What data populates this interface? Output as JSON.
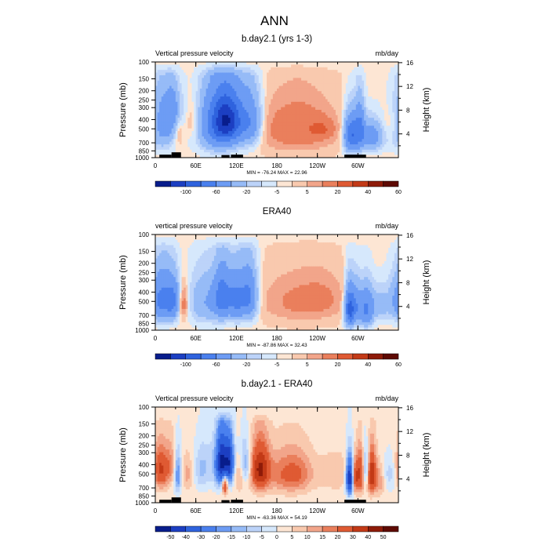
{
  "figure": {
    "title": "ANN"
  },
  "chart_data": [
    {
      "type": "heatmap",
      "title": "b.day2.1 (yrs 1-3)",
      "subtitle_left": "Vertical pressure velocity",
      "subtitle_right": "mb/day",
      "ylabel": "Pressure (mb)",
      "ylabel_right": "Height (km)",
      "xticks": [
        "0",
        "60E",
        "120E",
        "180",
        "120W",
        "60W"
      ],
      "yticks": [
        "100",
        "150",
        "200",
        "250",
        "300",
        "400",
        "500",
        "700",
        "850",
        "1000"
      ],
      "yticks_right": [
        "16",
        "12",
        "8",
        "4"
      ],
      "stats": "MIN = -76.24  MAX = 22.96",
      "colorbar_labels": [
        "-100",
        "-60",
        "-20",
        "-5",
        "5",
        "20",
        "40",
        "60"
      ],
      "xlim_deg_east": [
        0,
        360
      ],
      "ylim_mb": [
        1000,
        100
      ],
      "topography": true,
      "blobs": [
        {
          "lon": 10,
          "p": 450,
          "v": -30,
          "wlon": 14,
          "wp": 420
        },
        {
          "lon": 27,
          "p": 320,
          "v": -25,
          "wlon": 9,
          "wp": 250
        },
        {
          "lon": 34,
          "p": 450,
          "v": 12,
          "wlon": 5,
          "wp": 340
        },
        {
          "lon": 56,
          "p": 420,
          "v": 8,
          "wlon": 9,
          "wp": 280
        },
        {
          "lon": 95,
          "p": 450,
          "v": -55,
          "wlon": 20,
          "wp": 450
        },
        {
          "lon": 108,
          "p": 400,
          "v": -60,
          "wlon": 14,
          "wp": 320
        },
        {
          "lon": 140,
          "p": 420,
          "v": -35,
          "wlon": 12,
          "wp": 380
        },
        {
          "lon": 210,
          "p": 500,
          "v": 18,
          "wlon": 38,
          "wp": 420
        },
        {
          "lon": 247,
          "p": 500,
          "v": 12,
          "wlon": 12,
          "wp": 160
        },
        {
          "lon": 290,
          "p": 580,
          "v": -60,
          "wlon": 7,
          "wp": 350
        },
        {
          "lon": 303,
          "p": 500,
          "v": -40,
          "wlon": 5,
          "wp": 380
        },
        {
          "lon": 320,
          "p": 600,
          "v": -30,
          "wlon": 12,
          "wp": 300
        },
        {
          "lon": 355,
          "p": 450,
          "v": 10,
          "wlon": 12,
          "wp": 250
        }
      ]
    },
    {
      "type": "heatmap",
      "title": "ERA40",
      "subtitle_left": "vertical pressure velocity",
      "subtitle_right": "mb/day",
      "ylabel": "Pressure (mb)",
      "ylabel_right": "Height (km)",
      "xticks": [
        "0",
        "60E",
        "120E",
        "180",
        "120W",
        "60W"
      ],
      "yticks": [
        "100",
        "150",
        "200",
        "250",
        "300",
        "400",
        "500",
        "700",
        "850",
        "1000"
      ],
      "yticks_right": [
        "16",
        "12",
        "8",
        "4"
      ],
      "stats": "MIN = -87.86  MAX = 32.43",
      "colorbar_labels": [
        "-100",
        "-60",
        "-20",
        "-5",
        "5",
        "20",
        "40",
        "60"
      ],
      "xlim_deg_east": [
        0,
        360
      ],
      "ylim_mb": [
        1000,
        100
      ],
      "topography": false,
      "blobs": [
        {
          "lon": 12,
          "p": 480,
          "v": -45,
          "wlon": 12,
          "wp": 380
        },
        {
          "lon": 28,
          "p": 500,
          "v": -30,
          "wlon": 7,
          "wp": 320
        },
        {
          "lon": 40,
          "p": 520,
          "v": 22,
          "wlon": 6,
          "wp": 300
        },
        {
          "lon": 75,
          "p": 500,
          "v": -20,
          "wlon": 18,
          "wp": 430
        },
        {
          "lon": 100,
          "p": 450,
          "v": -50,
          "wlon": 9,
          "wp": 360
        },
        {
          "lon": 120,
          "p": 480,
          "v": -40,
          "wlon": 8,
          "wp": 360
        },
        {
          "lon": 138,
          "p": 450,
          "v": -45,
          "wlon": 9,
          "wp": 380
        },
        {
          "lon": 215,
          "p": 500,
          "v": 12,
          "wlon": 40,
          "wp": 380
        },
        {
          "lon": 250,
          "p": 450,
          "v": 5,
          "wlon": 20,
          "wp": 300
        },
        {
          "lon": 288,
          "p": 600,
          "v": -70,
          "wlon": 5,
          "wp": 380
        },
        {
          "lon": 298,
          "p": 550,
          "v": -30,
          "wlon": 5,
          "wp": 350
        },
        {
          "lon": 312,
          "p": 600,
          "v": -40,
          "wlon": 7,
          "wp": 380
        },
        {
          "lon": 330,
          "p": 550,
          "v": -15,
          "wlon": 12,
          "wp": 300
        },
        {
          "lon": 358,
          "p": 500,
          "v": -8,
          "wlon": 12,
          "wp": 350
        }
      ]
    },
    {
      "type": "heatmap",
      "title": "b.day2.1 - ERA40",
      "subtitle_left": "Vertical pressure velocity",
      "subtitle_right": "mb/day",
      "ylabel": "Pressure (mb)",
      "ylabel_right": "Height (km)",
      "xticks": [
        "0",
        "60E",
        "120E",
        "180",
        "120W",
        "60W"
      ],
      "yticks": [
        "100",
        "150",
        "200",
        "250",
        "300",
        "400",
        "500",
        "700",
        "850",
        "1000"
      ],
      "yticks_right": [
        "16",
        "12",
        "8",
        "4"
      ],
      "stats": "MIN = -63.36  MAX = 54.19",
      "colorbar_labels": [
        "-50",
        "-40",
        "-30",
        "-20",
        "-15",
        "-10",
        "-5",
        "0",
        "5",
        "10",
        "15",
        "20",
        "30",
        "40",
        "50"
      ],
      "xlim_deg_east": [
        0,
        360
      ],
      "ylim_mb": [
        1000,
        100
      ],
      "topography": true,
      "blobs": [
        {
          "lon": 8,
          "p": 450,
          "v": 30,
          "wlon": 8,
          "wp": 320
        },
        {
          "lon": 24,
          "p": 400,
          "v": 12,
          "wlon": 6,
          "wp": 300
        },
        {
          "lon": 33,
          "p": 500,
          "v": -25,
          "wlon": 4,
          "wp": 360
        },
        {
          "lon": 48,
          "p": 500,
          "v": 10,
          "wlon": 6,
          "wp": 300
        },
        {
          "lon": 68,
          "p": 450,
          "v": -12,
          "wlon": 8,
          "wp": 350
        },
        {
          "lon": 86,
          "p": 400,
          "v": -8,
          "wlon": 10,
          "wp": 350
        },
        {
          "lon": 98,
          "p": 380,
          "v": -50,
          "wlon": 6,
          "wp": 360
        },
        {
          "lon": 103,
          "p": 650,
          "v": 40,
          "wlon": 3,
          "wp": 200
        },
        {
          "lon": 110,
          "p": 380,
          "v": -45,
          "wlon": 5,
          "wp": 320
        },
        {
          "lon": 125,
          "p": 520,
          "v": 12,
          "wlon": 6,
          "wp": 300
        },
        {
          "lon": 133,
          "p": 400,
          "v": -20,
          "wlon": 6,
          "wp": 300
        },
        {
          "lon": 155,
          "p": 450,
          "v": 40,
          "wlon": 10,
          "wp": 360
        },
        {
          "lon": 185,
          "p": 500,
          "v": 12,
          "wlon": 14,
          "wp": 360
        },
        {
          "lon": 210,
          "p": 500,
          "v": 18,
          "wlon": 16,
          "wp": 360
        },
        {
          "lon": 268,
          "p": 500,
          "v": 8,
          "wlon": 20,
          "wp": 300
        },
        {
          "lon": 288,
          "p": 550,
          "v": -55,
          "wlon": 4,
          "wp": 360
        },
        {
          "lon": 296,
          "p": 550,
          "v": 25,
          "wlon": 3,
          "wp": 320
        },
        {
          "lon": 304,
          "p": 500,
          "v": 30,
          "wlon": 4,
          "wp": 360
        },
        {
          "lon": 312,
          "p": 450,
          "v": -25,
          "wlon": 4,
          "wp": 320
        },
        {
          "lon": 320,
          "p": 500,
          "v": 40,
          "wlon": 5,
          "wp": 360
        },
        {
          "lon": 333,
          "p": 600,
          "v": 12,
          "wlon": 5,
          "wp": 300
        },
        {
          "lon": 348,
          "p": 500,
          "v": -10,
          "wlon": 8,
          "wp": 300
        }
      ]
    }
  ]
}
